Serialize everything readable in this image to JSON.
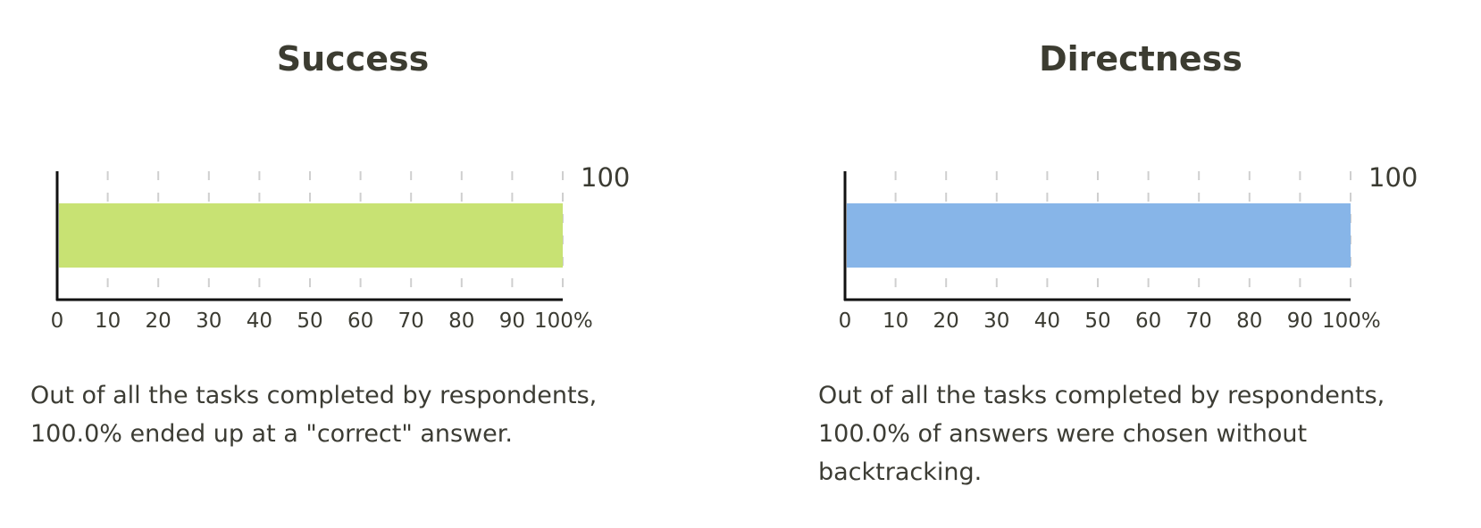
{
  "panels": [
    {
      "title": "Success",
      "caption": "Out of all the tasks completed by respondents, 100.0% ended up at a \"correct\" answer."
    },
    {
      "title": "Directness",
      "caption": "Out of all the tasks completed by respondents, 100.0% of answers were chosen without backtracking."
    }
  ],
  "chart_data": [
    {
      "type": "bar",
      "orientation": "horizontal",
      "title": "Success",
      "values": [
        100
      ],
      "value_labels": [
        "100"
      ],
      "xlim": [
        0,
        100
      ],
      "x_ticks": [
        "0",
        "10",
        "20",
        "30",
        "40",
        "50",
        "60",
        "70",
        "80",
        "90",
        "100%"
      ],
      "grid": "dashed-vertical",
      "bar_color": "#c8e273"
    },
    {
      "type": "bar",
      "orientation": "horizontal",
      "title": "Directness",
      "values": [
        100
      ],
      "value_labels": [
        "100"
      ],
      "xlim": [
        0,
        100
      ],
      "x_ticks": [
        "0",
        "10",
        "20",
        "30",
        "40",
        "50",
        "60",
        "70",
        "80",
        "90",
        "100%"
      ],
      "grid": "dashed-vertical",
      "bar_color": "#87b5e8"
    }
  ]
}
